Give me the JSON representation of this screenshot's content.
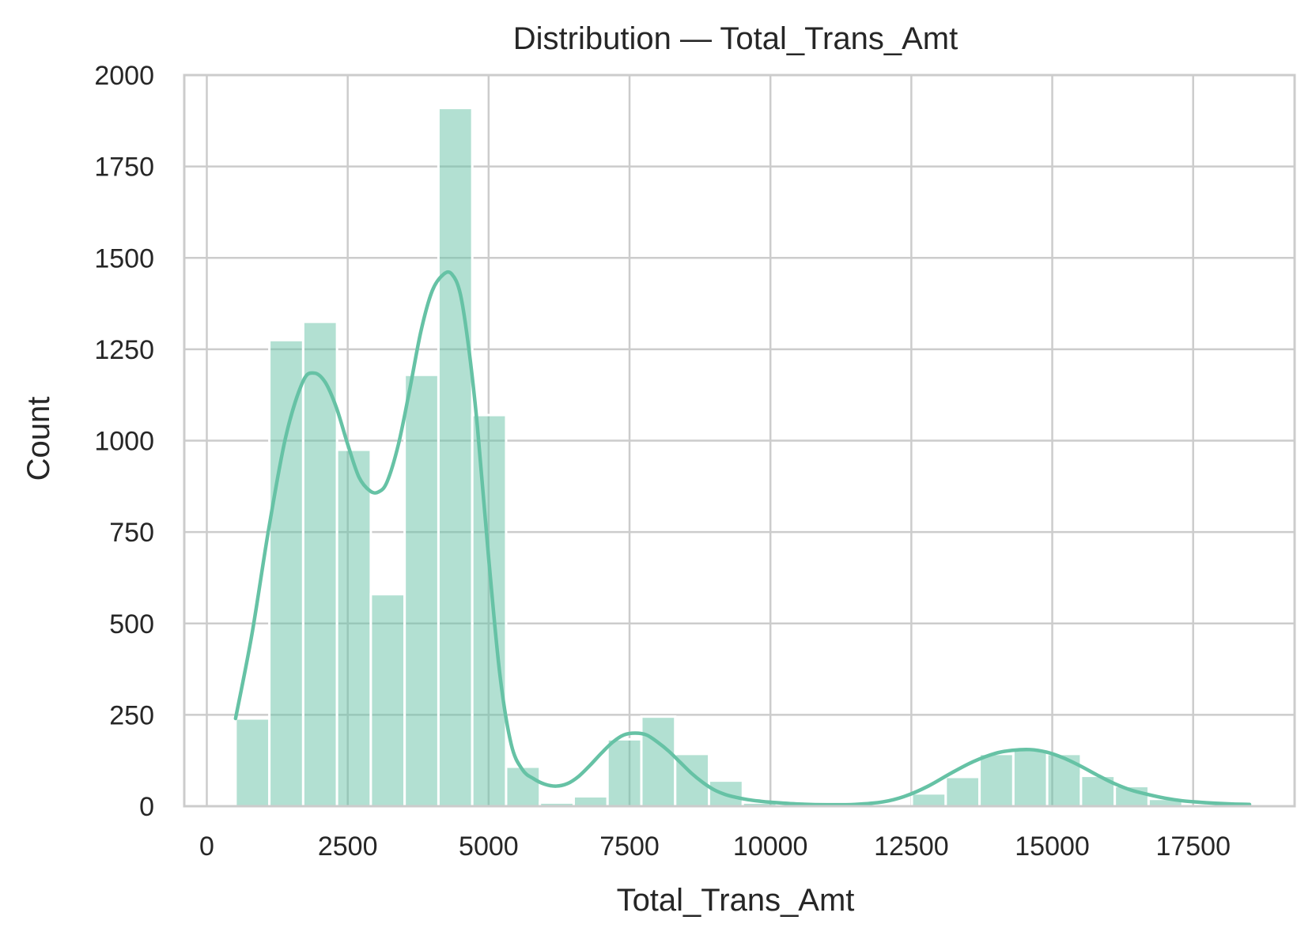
{
  "chart_data": {
    "type": "bar",
    "title": "Distribution — Total_Trans_Amt",
    "xlabel": "Total_Trans_Amt",
    "ylabel": "Count",
    "xlim": [
      -400,
      19300
    ],
    "ylim": [
      0,
      2000
    ],
    "xticks": [
      0,
      2500,
      5000,
      7500,
      10000,
      12500,
      15000,
      17500
    ],
    "yticks": [
      0,
      250,
      500,
      750,
      1000,
      1250,
      1500,
      1750,
      2000
    ],
    "grid": true,
    "bar_color": "#66c2a5",
    "kde_color": "#66c2a5",
    "bins": [
      {
        "x0": 510,
        "x1": 1110,
        "count": 240
      },
      {
        "x0": 1110,
        "x1": 1710,
        "count": 1275
      },
      {
        "x0": 1710,
        "x1": 2310,
        "count": 1325
      },
      {
        "x0": 2310,
        "x1": 2910,
        "count": 975
      },
      {
        "x0": 2910,
        "x1": 3510,
        "count": 580
      },
      {
        "x0": 3510,
        "x1": 4110,
        "count": 1180
      },
      {
        "x0": 4110,
        "x1": 4710,
        "count": 1910
      },
      {
        "x0": 4710,
        "x1": 5310,
        "count": 1070
      },
      {
        "x0": 5310,
        "x1": 5910,
        "count": 108
      },
      {
        "x0": 5910,
        "x1": 6510,
        "count": 10
      },
      {
        "x0": 6510,
        "x1": 7110,
        "count": 27
      },
      {
        "x0": 7110,
        "x1": 7710,
        "count": 183
      },
      {
        "x0": 7710,
        "x1": 8310,
        "count": 245
      },
      {
        "x0": 8310,
        "x1": 8910,
        "count": 143
      },
      {
        "x0": 8910,
        "x1": 9510,
        "count": 70
      },
      {
        "x0": 9510,
        "x1": 10110,
        "count": 10
      },
      {
        "x0": 10110,
        "x1": 10710,
        "count": 0
      },
      {
        "x0": 10710,
        "x1": 11310,
        "count": 0
      },
      {
        "x0": 11310,
        "x1": 11910,
        "count": 0
      },
      {
        "x0": 11910,
        "x1": 12510,
        "count": 0
      },
      {
        "x0": 12510,
        "x1": 13110,
        "count": 35
      },
      {
        "x0": 13110,
        "x1": 13710,
        "count": 80
      },
      {
        "x0": 13710,
        "x1": 14310,
        "count": 143
      },
      {
        "x0": 14310,
        "x1": 14910,
        "count": 155
      },
      {
        "x0": 14910,
        "x1": 15510,
        "count": 143
      },
      {
        "x0": 15510,
        "x1": 16110,
        "count": 83
      },
      {
        "x0": 16110,
        "x1": 16710,
        "count": 55
      },
      {
        "x0": 16710,
        "x1": 17310,
        "count": 20
      },
      {
        "x0": 17310,
        "x1": 17910,
        "count": 0
      },
      {
        "x0": 17910,
        "x1": 18510,
        "count": 5
      }
    ],
    "kde": {
      "x": [
        510,
        800,
        1100,
        1400,
        1700,
        1900,
        2100,
        2300,
        2500,
        2700,
        2900,
        3050,
        3200,
        3400,
        3600,
        3800,
        4000,
        4200,
        4350,
        4500,
        4650,
        4800,
        5000,
        5200,
        5400,
        5600,
        5800,
        6000,
        6200,
        6400,
        6600,
        6800,
        7000,
        7200,
        7400,
        7600,
        7800,
        8000,
        8200,
        8400,
        8600,
        8800,
        9000,
        9200,
        9400,
        9600,
        9800,
        10000,
        10500,
        11000,
        11500,
        12000,
        12400,
        12800,
        13200,
        13600,
        14000,
        14300,
        14600,
        14900,
        15200,
        15500,
        15800,
        16100,
        16400,
        16700,
        17000,
        17300,
        17600,
        17900,
        18200,
        18500
      ],
      "y": [
        240,
        470,
        760,
        1010,
        1160,
        1185,
        1160,
        1090,
        990,
        900,
        862,
        860,
        888,
        990,
        1140,
        1300,
        1410,
        1455,
        1455,
        1400,
        1250,
        1040,
        680,
        360,
        170,
        100,
        75,
        60,
        55,
        62,
        82,
        112,
        145,
        175,
        195,
        200,
        195,
        175,
        150,
        120,
        90,
        65,
        45,
        32,
        24,
        18,
        14,
        11,
        6,
        4,
        5,
        12,
        28,
        55,
        90,
        122,
        145,
        153,
        155,
        148,
        132,
        110,
        85,
        62,
        44,
        32,
        22,
        15,
        11,
        8,
        6,
        5
      ]
    }
  }
}
